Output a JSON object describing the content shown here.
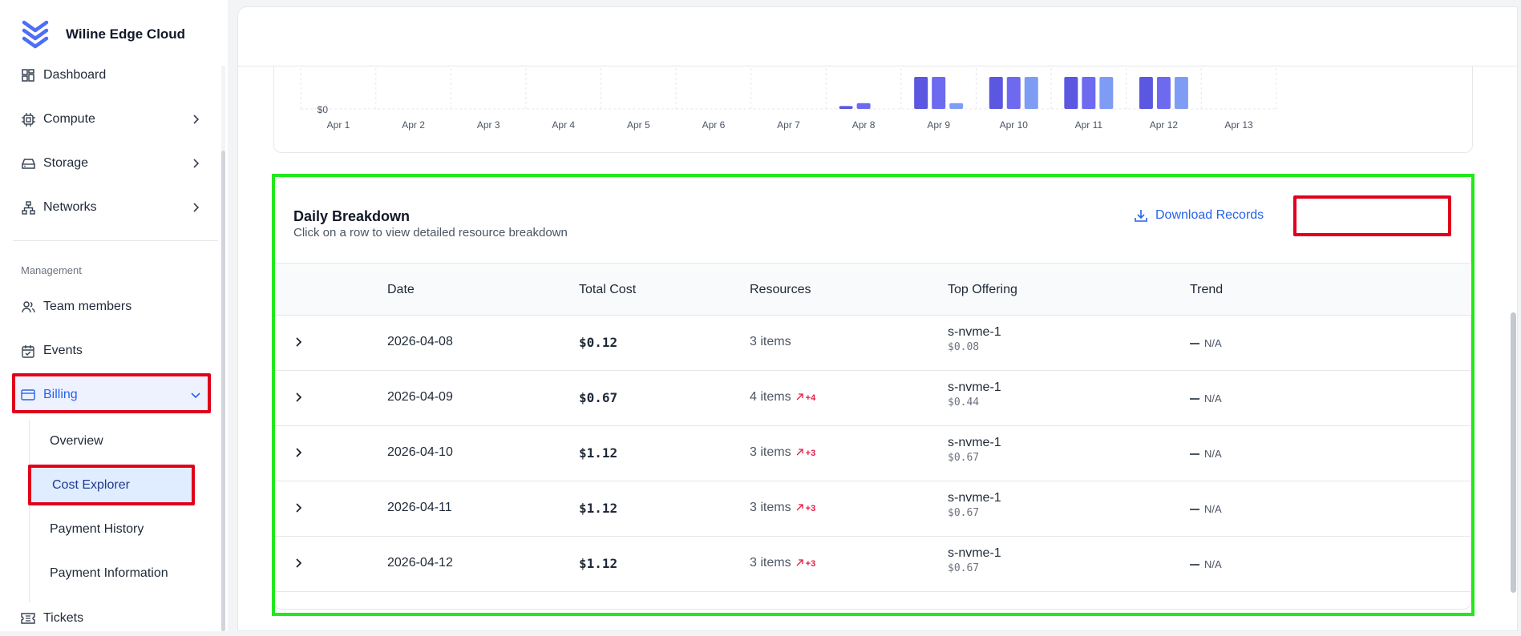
{
  "app": {
    "name": "Wiline Edge Cloud"
  },
  "sidebar": {
    "items": [
      {
        "label": "Dashboard",
        "icon": "dashboard-icon"
      },
      {
        "label": "Compute",
        "icon": "cpu-icon",
        "has_children": true
      },
      {
        "label": "Storage",
        "icon": "storage-icon",
        "has_children": true
      },
      {
        "label": "Networks",
        "icon": "network-icon",
        "has_children": true
      }
    ],
    "section_label": "Management",
    "management_items": [
      {
        "label": "Team members",
        "icon": "users-icon"
      },
      {
        "label": "Events",
        "icon": "calendar-icon"
      },
      {
        "label": "Billing",
        "icon": "credit-card-icon",
        "expanded": true,
        "active": true
      }
    ],
    "billing_sub": [
      {
        "label": "Overview"
      },
      {
        "label": "Cost Explorer",
        "active": true
      },
      {
        "label": "Payment History"
      },
      {
        "label": "Payment Information"
      }
    ],
    "tickets": {
      "label": "Tickets",
      "icon": "ticket-icon"
    }
  },
  "chart_data": {
    "type": "bar",
    "categories": [
      "Apr 1",
      "Apr 2",
      "Apr 3",
      "Apr 4",
      "Apr 5",
      "Apr 6",
      "Apr 7",
      "Apr 8",
      "Apr 9",
      "Apr 10",
      "Apr 11",
      "Apr 12",
      "Apr 13"
    ],
    "y_tick_label": "$0",
    "grid": true,
    "colors": [
      "#5b57e0",
      "#6d6af0",
      "#7f9cf5"
    ],
    "series": [
      {
        "values": [
          0,
          0,
          0,
          0,
          0,
          0,
          0,
          0.04,
          0.44,
          0.44,
          0.44,
          0.44,
          0
        ]
      },
      {
        "values": [
          0,
          0,
          0,
          0,
          0,
          0,
          0,
          0.08,
          0.44,
          0.44,
          0.44,
          0.44,
          0
        ]
      },
      {
        "values": [
          0,
          0,
          0,
          0,
          0,
          0,
          0,
          0,
          0.08,
          0.44,
          0.44,
          0.44,
          0
        ]
      }
    ],
    "ylim": [
      0,
      0.44
    ],
    "note": "chart is scrolled; only lower portion of bars visible"
  },
  "breakdown": {
    "title": "Daily Breakdown",
    "subtitle": "Click on a row to view detailed resource breakdown",
    "download_label": "Download Records",
    "columns": [
      "Date",
      "Total Cost",
      "Resources",
      "Top Offering",
      "Trend"
    ],
    "rows": [
      {
        "date": "2026-04-08",
        "total": "$0.12",
        "resources": "3 items",
        "delta": "",
        "offering": "s-nvme-1",
        "offering_cost": "$0.08",
        "trend": "N/A"
      },
      {
        "date": "2026-04-09",
        "total": "$0.67",
        "resources": "4 items",
        "delta": "+4",
        "offering": "s-nvme-1",
        "offering_cost": "$0.44",
        "trend": "N/A"
      },
      {
        "date": "2026-04-10",
        "total": "$1.12",
        "resources": "3 items",
        "delta": "+3",
        "offering": "s-nvme-1",
        "offering_cost": "$0.67",
        "trend": "N/A"
      },
      {
        "date": "2026-04-11",
        "total": "$1.12",
        "resources": "3 items",
        "delta": "+3",
        "offering": "s-nvme-1",
        "offering_cost": "$0.67",
        "trend": "N/A"
      },
      {
        "date": "2026-04-12",
        "total": "$1.12",
        "resources": "3 items",
        "delta": "+3",
        "offering": "s-nvme-1",
        "offering_cost": "$0.67",
        "trend": "N/A"
      }
    ]
  }
}
